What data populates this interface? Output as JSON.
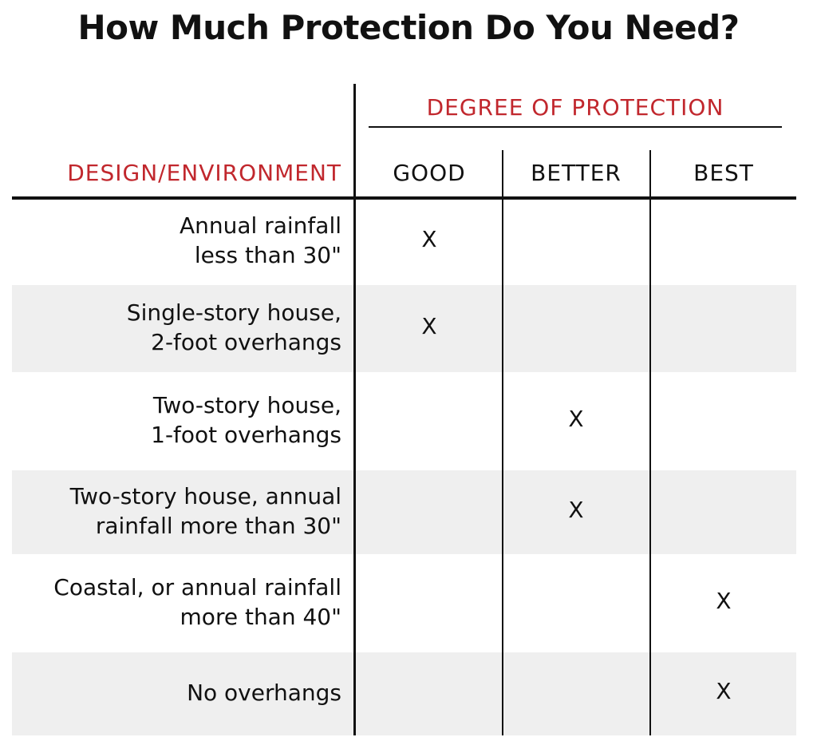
{
  "title": "How Much Protection Do You Need?",
  "header": {
    "group": "DEGREE OF PROTECTION",
    "row_header": "DESIGN/ENVIRONMENT",
    "columns": [
      "GOOD",
      "BETTER",
      "BEST"
    ]
  },
  "mark_symbol": "X",
  "accent_color": "#c1272d",
  "rows": [
    {
      "label": "Annual rainfall\nless than 30\"",
      "level": "GOOD"
    },
    {
      "label": "Single-story house,\n2-foot overhangs",
      "level": "GOOD"
    },
    {
      "label": "Two-story house,\n1-foot overhangs",
      "level": "BETTER"
    },
    {
      "label": "Two-story house, annual\nrainfall more than 30\"",
      "level": "BETTER"
    },
    {
      "label": "Coastal, or annual rainfall\nmore than 40\"",
      "level": "BEST"
    },
    {
      "label": "No overhangs",
      "level": "BEST"
    }
  ]
}
